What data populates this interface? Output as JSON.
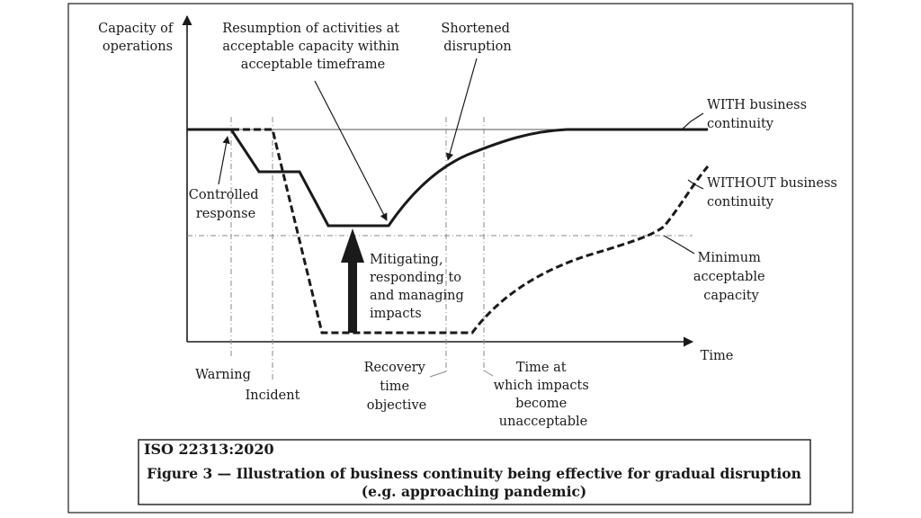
{
  "axis": {
    "y_label": [
      "Capacity of",
      "operations"
    ],
    "x_label": "Time"
  },
  "callouts": {
    "resumption": [
      "Resumption of activities at",
      "acceptable capacity within",
      "acceptable timeframe"
    ],
    "shortened": [
      "Shortened",
      "disruption"
    ],
    "with_bc": [
      "WITH business",
      "continuity"
    ],
    "without_bc": [
      "WITHOUT business",
      "continuity"
    ],
    "controlled": [
      "Controlled",
      "response"
    ],
    "mitigating": [
      "Mitigating,",
      "responding to",
      "and managing",
      "impacts"
    ],
    "minimum": [
      "Minimum",
      "acceptable",
      "capacity"
    ]
  },
  "time_markers": {
    "warning": "Warning",
    "incident": "Incident",
    "recovery": [
      "Recovery",
      "time",
      "objective"
    ],
    "unacceptable": [
      "Time at",
      "which impacts",
      "become",
      "unacceptable"
    ]
  },
  "caption": {
    "standard": "ISO 22313:2020",
    "line1": "Figure 3 — Illustration of business continuity being effective for gradual disruption",
    "line2": "(e.g. approaching pandemic)"
  },
  "colors": {
    "ink": "#1a1a1a",
    "grid": "#8a8a8a",
    "background": "#ffffff"
  }
}
